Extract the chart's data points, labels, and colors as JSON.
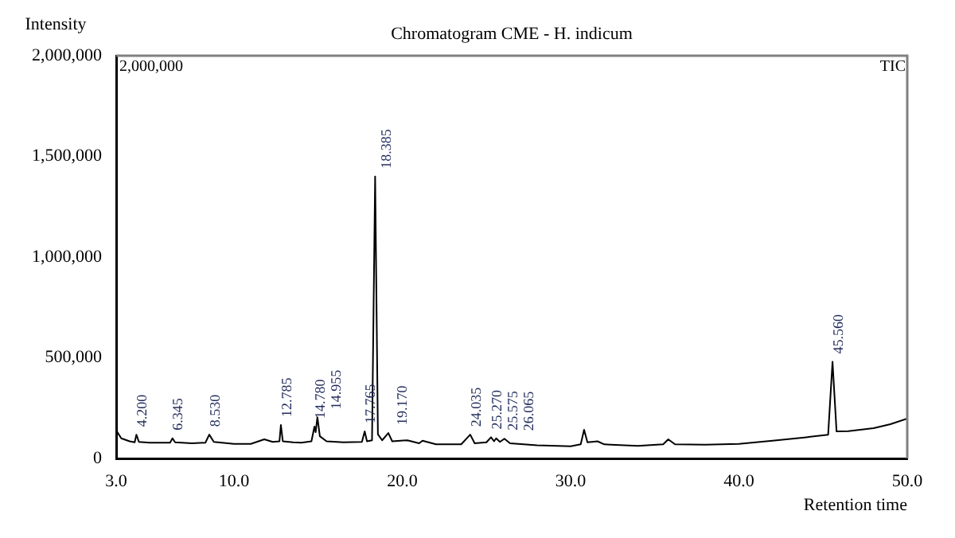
{
  "chart_data": {
    "type": "line",
    "title": "Chromatogram CME - H. indicum",
    "xlabel": "Retention time",
    "ylabel": "Intensity",
    "xlim": [
      3,
      50
    ],
    "xticks": [
      {
        "value": 3,
        "label": "3.0"
      },
      {
        "value": 10,
        "label": "10.0"
      },
      {
        "value": 20,
        "label": "20.0"
      },
      {
        "value": 30,
        "label": "30.0"
      },
      {
        "value": 40,
        "label": "40.0"
      },
      {
        "value": 50,
        "label": "50.0"
      }
    ],
    "ylim": [
      0,
      2000000
    ],
    "yticks": [
      {
        "value": 0,
        "label": "0"
      },
      {
        "value": 500000,
        "label": "500,000"
      },
      {
        "value": 1000000,
        "label": "1,000,000"
      },
      {
        "value": 1500000,
        "label": "1,500,000"
      },
      {
        "value": 2000000,
        "label": "2,000,000"
      }
    ],
    "grid": false,
    "legend": false,
    "marker": "none",
    "line_style": "solid",
    "series": [
      {
        "color": "#000000",
        "x": [
          3.0,
          3.3,
          3.8,
          4.1,
          4.2,
          4.35,
          5.0,
          6.2,
          6.345,
          6.5,
          7.5,
          8.3,
          8.53,
          8.8,
          10.0,
          11.0,
          11.8,
          12.3,
          12.7,
          12.785,
          12.9,
          13.5,
          14.0,
          14.6,
          14.78,
          14.85,
          14.955,
          15.1,
          15.5,
          16.5,
          17.6,
          17.765,
          17.9,
          18.2,
          18.385,
          18.55,
          18.8,
          19.17,
          19.4,
          20.3,
          21.0,
          21.2,
          22.0,
          23.5,
          24.035,
          24.3,
          25.0,
          25.27,
          25.45,
          25.575,
          25.8,
          26.065,
          26.4,
          28.0,
          30.0,
          30.6,
          30.8,
          31.0,
          31.6,
          32.0,
          34.0,
          35.5,
          35.8,
          36.2,
          38.0,
          40.0,
          42.0,
          44.0,
          45.3,
          45.56,
          45.8,
          46.5,
          48.0,
          49.0,
          50.0
        ],
        "values": [
          140000,
          100000,
          85000,
          80000,
          118000,
          82000,
          78000,
          78000,
          100000,
          80000,
          75000,
          78000,
          118000,
          82000,
          72000,
          72000,
          95000,
          82000,
          85000,
          166000,
          85000,
          80000,
          78000,
          85000,
          158000,
          130000,
          205000,
          110000,
          85000,
          80000,
          82000,
          134000,
          85000,
          90000,
          1400000,
          120000,
          90000,
          126000,
          85000,
          90000,
          75000,
          88000,
          70000,
          70000,
          118000,
          75000,
          80000,
          105000,
          85000,
          100000,
          82000,
          98000,
          75000,
          65000,
          60000,
          70000,
          142000,
          80000,
          85000,
          70000,
          62000,
          70000,
          95000,
          70000,
          68000,
          72000,
          88000,
          105000,
          118000,
          480000,
          134000,
          135000,
          150000,
          170000,
          198000
        ]
      }
    ],
    "annotations": [
      "2,000,000",
      "TIC",
      {
        "text": "4.200",
        "x": 4.2,
        "y": 118000
      },
      {
        "text": "6.345",
        "x": 6.345,
        "y": 100000
      },
      {
        "text": "8.530",
        "x": 8.53,
        "y": 118000
      },
      {
        "text": "12.785",
        "x": 12.785,
        "y": 166000
      },
      {
        "text": "14.780",
        "x": 14.78,
        "y": 158000
      },
      {
        "text": "14.955",
        "x": 14.955,
        "y": 205000
      },
      {
        "text": "17.765",
        "x": 17.765,
        "y": 134000
      },
      {
        "text": "18.385",
        "x": 18.385,
        "y": 1400000
      },
      {
        "text": "19.170",
        "x": 19.17,
        "y": 126000
      },
      {
        "text": "24.035",
        "x": 24.035,
        "y": 118000
      },
      {
        "text": "25.270",
        "x": 25.27,
        "y": 105000
      },
      {
        "text": "25.575",
        "x": 25.575,
        "y": 100000
      },
      {
        "text": "26.065",
        "x": 26.065,
        "y": 98000
      },
      {
        "text": "45.560",
        "x": 45.56,
        "y": 480000
      }
    ]
  }
}
